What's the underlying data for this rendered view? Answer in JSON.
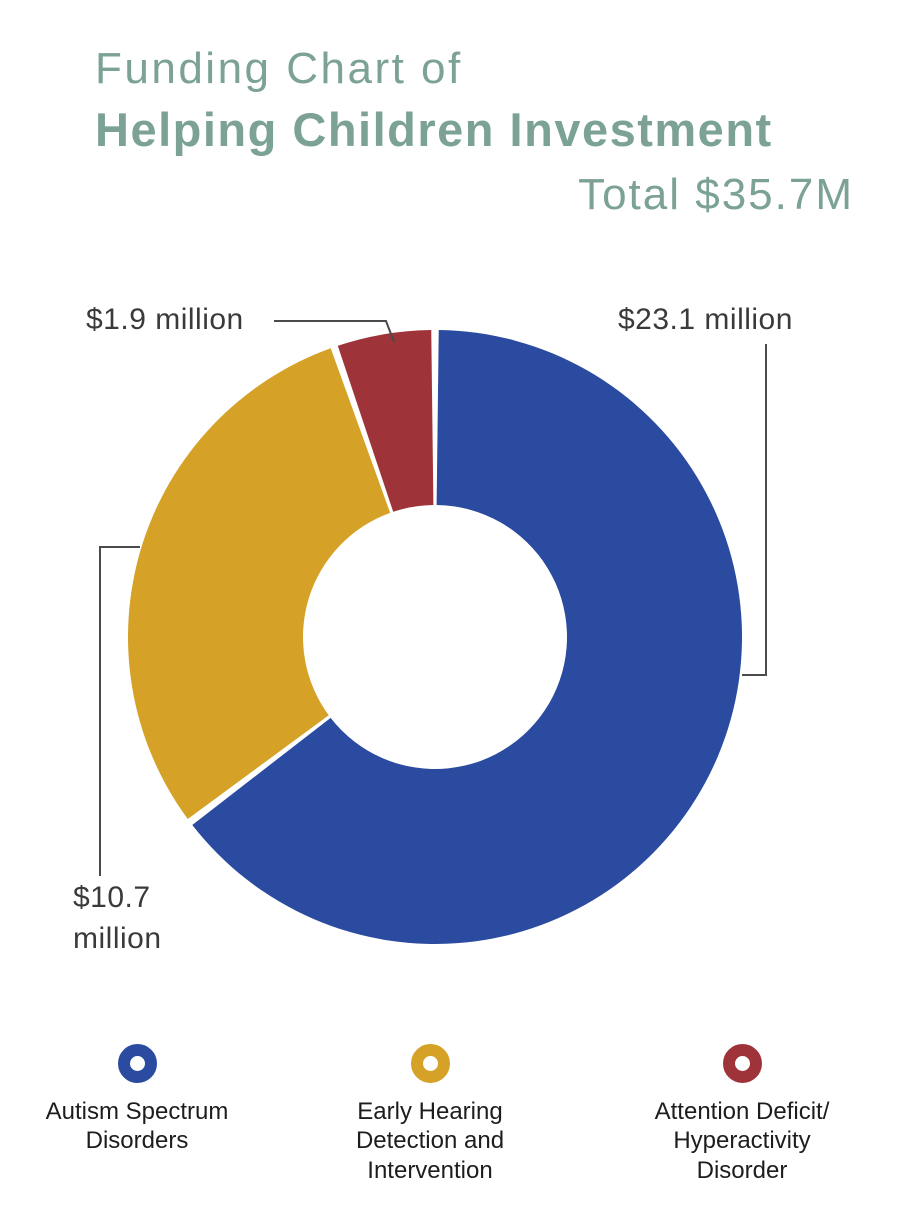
{
  "header": {
    "title_line1": "Funding Chart of",
    "title_line2": "Helping Children Investment",
    "total_label": "Total $35.7M"
  },
  "colors": {
    "title_green": "#7ba295",
    "blue": "#2a4ba0",
    "gold": "#d5a126",
    "red": "#9e3339",
    "text_dark": "#3a3a3a",
    "leader_line": "#4a4a4a"
  },
  "chart_data": {
    "type": "pie",
    "donut": true,
    "title": "Funding Chart of Helping Children Investment",
    "total_label": "Total $35.7M",
    "units": "USD millions",
    "start_angle_deg": 0,
    "clockwise": true,
    "slices": [
      {
        "key": "autism",
        "label": "Autism Spectrum Disorders",
        "value": 23.1,
        "display": "$23.1 million",
        "color": "#2a4ba0"
      },
      {
        "key": "ehdi",
        "label": "Early Hearing Detection and Intervention",
        "value": 10.7,
        "display": "$10.7 million",
        "color": "#d5a126"
      },
      {
        "key": "adhd",
        "label": "Attention Deficit/ Hyperactivity Disorder",
        "value": 1.9,
        "display": "$1.9 million",
        "color": "#9e3339"
      }
    ]
  },
  "callouts": {
    "adhd": "$1.9 million",
    "autism": "$23.1 million",
    "ehdi": "$10.7\nmillion"
  },
  "legend": {
    "items": [
      {
        "key": "autism",
        "color": "#2a4ba0",
        "label": "Autism Spectrum\nDisorders"
      },
      {
        "key": "ehdi",
        "color": "#d5a126",
        "label": "Early Hearing\nDetection and\nIntervention"
      },
      {
        "key": "adhd",
        "color": "#9e3339",
        "label": "Attention Deficit/\nHyperactivity\nDisorder"
      }
    ]
  }
}
